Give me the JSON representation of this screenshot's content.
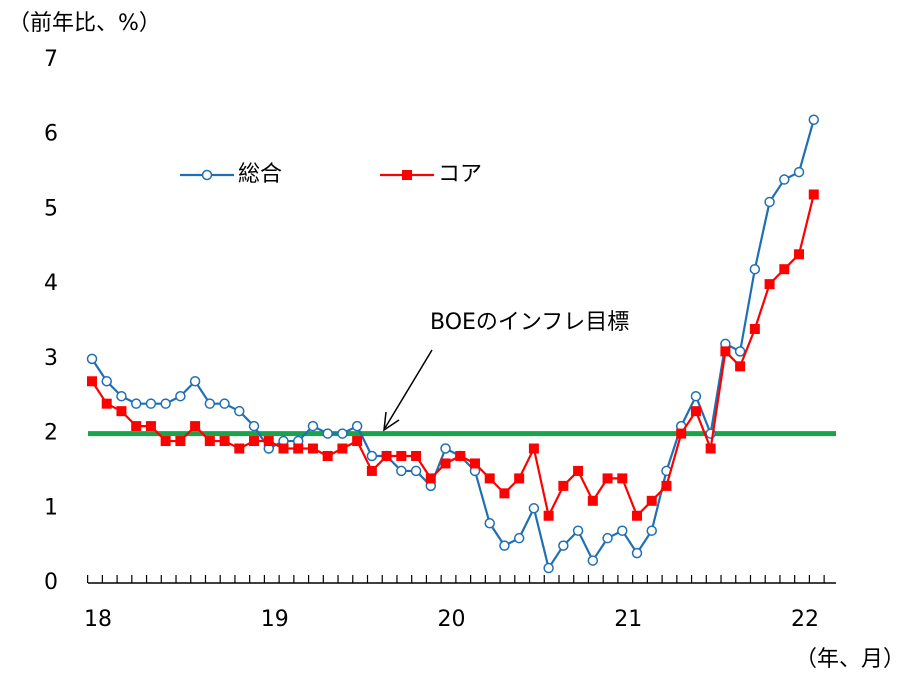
{
  "chart_data": {
    "type": "line",
    "y_axis_label": "（前年比、%）",
    "x_axis_label": "（年、月）",
    "categories": [
      "18",
      null,
      null,
      null,
      null,
      null,
      null,
      null,
      null,
      null,
      null,
      null,
      "19",
      null,
      null,
      null,
      null,
      null,
      null,
      null,
      null,
      null,
      null,
      null,
      "20",
      null,
      null,
      null,
      null,
      null,
      null,
      null,
      null,
      null,
      null,
      null,
      "21",
      null,
      null,
      null,
      null,
      null,
      null,
      null,
      null,
      null,
      null,
      null,
      "22",
      null
    ],
    "series": [
      {
        "name": "総合",
        "color": "#1f6fb4",
        "marker": "circle",
        "values": [
          3.0,
          2.7,
          2.5,
          2.4,
          2.4,
          2.4,
          2.5,
          2.7,
          2.4,
          2.4,
          2.3,
          2.1,
          1.8,
          1.9,
          1.9,
          2.1,
          2.0,
          2.0,
          2.1,
          1.7,
          1.7,
          1.5,
          1.5,
          1.3,
          1.8,
          1.7,
          1.5,
          0.8,
          0.5,
          0.6,
          1.0,
          0.2,
          0.5,
          0.7,
          0.3,
          0.6,
          0.7,
          0.4,
          0.7,
          1.5,
          2.1,
          2.5,
          2.0,
          3.2,
          3.1,
          4.2,
          5.1,
          5.4,
          5.5,
          6.2
        ]
      },
      {
        "name": "コア",
        "color": "#ff0000",
        "marker": "square",
        "values": [
          2.7,
          2.4,
          2.3,
          2.1,
          2.1,
          1.9,
          1.9,
          2.1,
          1.9,
          1.9,
          1.8,
          1.9,
          1.9,
          1.8,
          1.8,
          1.8,
          1.7,
          1.8,
          1.9,
          1.5,
          1.7,
          1.7,
          1.7,
          1.4,
          1.6,
          1.7,
          1.6,
          1.4,
          1.2,
          1.4,
          1.8,
          0.9,
          1.3,
          1.5,
          1.1,
          1.4,
          1.4,
          0.9,
          1.1,
          1.3,
          2.0,
          2.3,
          1.8,
          3.1,
          2.9,
          3.4,
          4.0,
          4.2,
          4.4,
          5.2
        ]
      }
    ],
    "reference_line": {
      "value": 2,
      "label": "BOEのインフレ目標",
      "color": "#1aa34a"
    },
    "ylim": [
      0,
      7
    ],
    "yticks": [
      0,
      1,
      2,
      3,
      4,
      5,
      6,
      7
    ],
    "grid": false
  }
}
